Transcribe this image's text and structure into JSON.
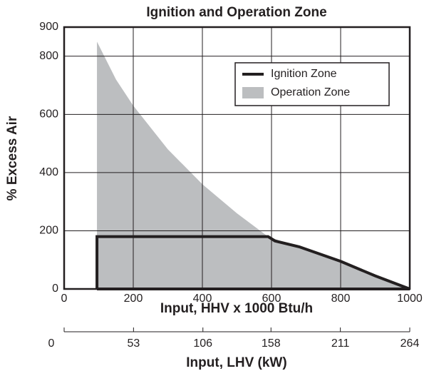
{
  "chart_data": {
    "type": "area-line",
    "title": "Ignition and Operation Zone",
    "xlabel": "Input, HHV x 1000 Btu/h",
    "ylabel": "% Excess Air",
    "x2label": "Input, LHV (kW)",
    "xlim": [
      0,
      1000
    ],
    "xticks": [
      0,
      200,
      400,
      600,
      800,
      1000
    ],
    "ylim": [
      0,
      900
    ],
    "yticks": [
      0,
      200,
      400,
      600,
      800,
      900
    ],
    "x2lim": [
      0,
      264
    ],
    "x2ticks": [
      0,
      53,
      106,
      158,
      211,
      264
    ],
    "grid": true,
    "legend": "upper right",
    "series": [
      {
        "name": "Ignition Zone",
        "kind": "line",
        "color": "#231f20",
        "x": [
          95,
          95,
          590,
          610,
          680,
          800,
          900,
          1000,
          95
        ],
        "values": [
          0,
          180,
          180,
          165,
          145,
          95,
          45,
          0,
          0
        ]
      },
      {
        "name": "Operation Zone",
        "kind": "area",
        "color": "#bcbec0",
        "x": [
          95,
          150,
          200,
          300,
          400,
          500,
          590,
          650,
          800,
          900,
          1000
        ],
        "values": [
          850,
          720,
          630,
          480,
          360,
          260,
          180,
          155,
          95,
          45,
          0
        ]
      }
    ]
  }
}
